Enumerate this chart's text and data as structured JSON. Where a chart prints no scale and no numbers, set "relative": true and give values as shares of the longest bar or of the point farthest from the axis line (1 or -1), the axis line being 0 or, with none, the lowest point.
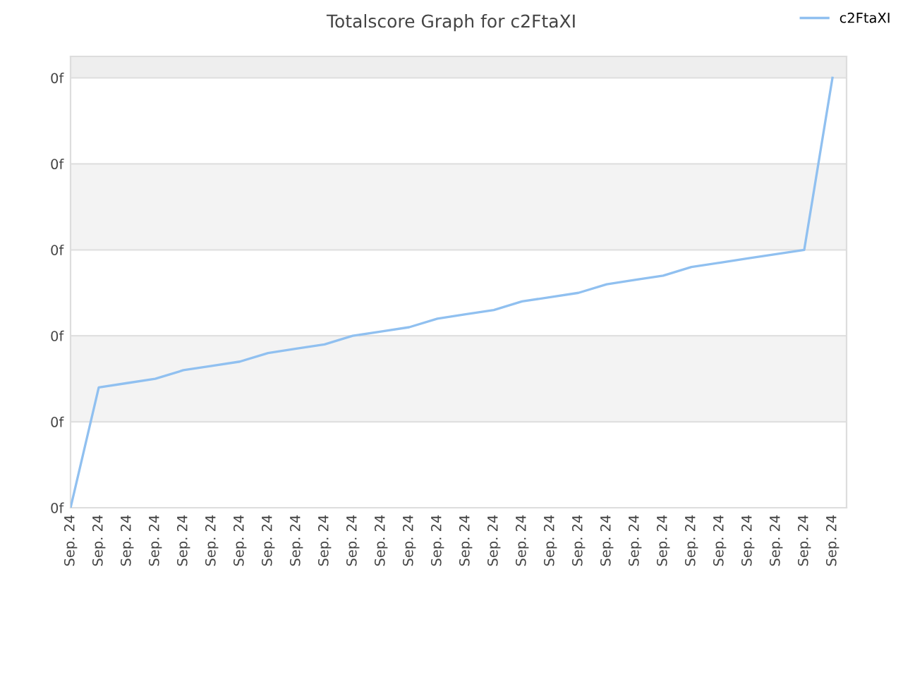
{
  "chart_data": {
    "type": "line",
    "title": "Totalscore Graph for c2FtaXI",
    "relative": true,
    "categories": [
      "Sep. 24",
      "Sep. 24",
      "Sep. 24",
      "Sep. 24",
      "Sep. 24",
      "Sep. 24",
      "Sep. 24",
      "Sep. 24",
      "Sep. 24",
      "Sep. 24",
      "Sep. 24",
      "Sep. 24",
      "Sep. 24",
      "Sep. 24",
      "Sep. 24",
      "Sep. 24",
      "Sep. 24",
      "Sep. 24",
      "Sep. 24",
      "Sep. 24",
      "Sep. 24",
      "Sep. 24",
      "Sep. 24",
      "Sep. 24",
      "Sep. 24",
      "Sep. 24",
      "Sep. 24",
      "Sep. 24"
    ],
    "annotations": [
      "0f",
      "0f",
      "0f",
      "0f",
      "0f",
      "0f"
    ],
    "bands": [
      {
        "axis": "y",
        "from": 0.2,
        "to": 0.4,
        "color": "#f3f3f3"
      },
      {
        "axis": "y",
        "from": 0.6,
        "to": 0.8,
        "color": "#f3f3f3"
      }
    ],
    "grid": "y",
    "legend": "top right",
    "marker": "none",
    "line_style": "solid",
    "series": [
      {
        "name": "c2FtaXI",
        "color": "#90c0f0",
        "values": [
          0,
          0.28,
          0.29,
          0.3,
          0.32,
          0.33,
          0.34,
          0.36,
          0.37,
          0.38,
          0.4,
          0.41,
          0.42,
          0.44,
          0.45,
          0.46,
          0.48,
          0.49,
          0.5,
          0.52,
          0.53,
          0.54,
          0.56,
          0.57,
          0.58,
          0.59,
          0.6,
          1.0
        ]
      }
    ]
  }
}
